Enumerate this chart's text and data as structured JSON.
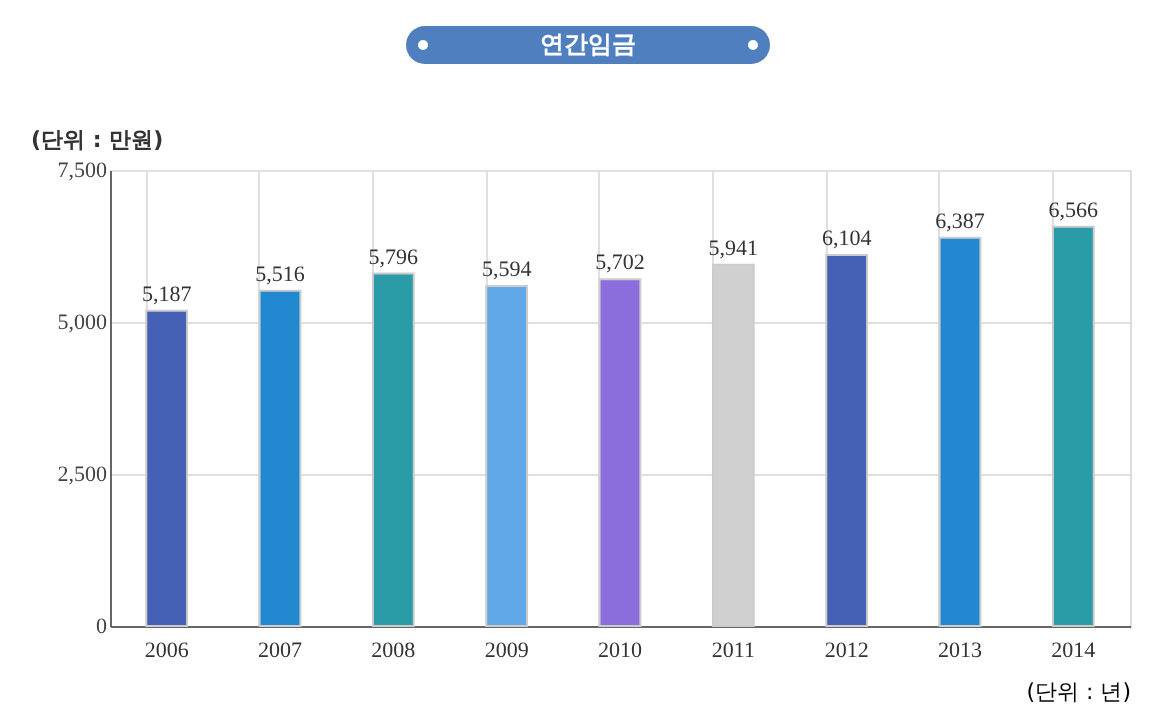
{
  "chart_data": {
    "type": "bar",
    "title": "연간임금",
    "ylabel": "(단위 : 만원)",
    "xlabel": "(단위 : 년)",
    "categories": [
      "2006",
      "2007",
      "2008",
      "2009",
      "2010",
      "2011",
      "2012",
      "2013",
      "2014"
    ],
    "values": [
      5187,
      5516,
      5796,
      5594,
      5702,
      5941,
      6104,
      6387,
      6566
    ],
    "colors": [
      "#4560b5",
      "#2288d0",
      "#2a9ca8",
      "#60a8e8",
      "#8c6ddc",
      "#d0d0d0",
      "#4560b5",
      "#2288d0",
      "#2a9ca8"
    ],
    "value_labels": [
      "5,187",
      "5,516",
      "5,796",
      "5,594",
      "5,702",
      "5,941",
      "6,104",
      "6,387",
      "6,566"
    ],
    "ylim": [
      0,
      7500
    ],
    "yticks": [
      0,
      {
        "value": 2500,
        "label": "2,500"
      },
      {
        "value": 5000,
        "label": "5,000"
      },
      {
        "value": 7500,
        "label": "7,500"
      }
    ],
    "grid": true
  }
}
